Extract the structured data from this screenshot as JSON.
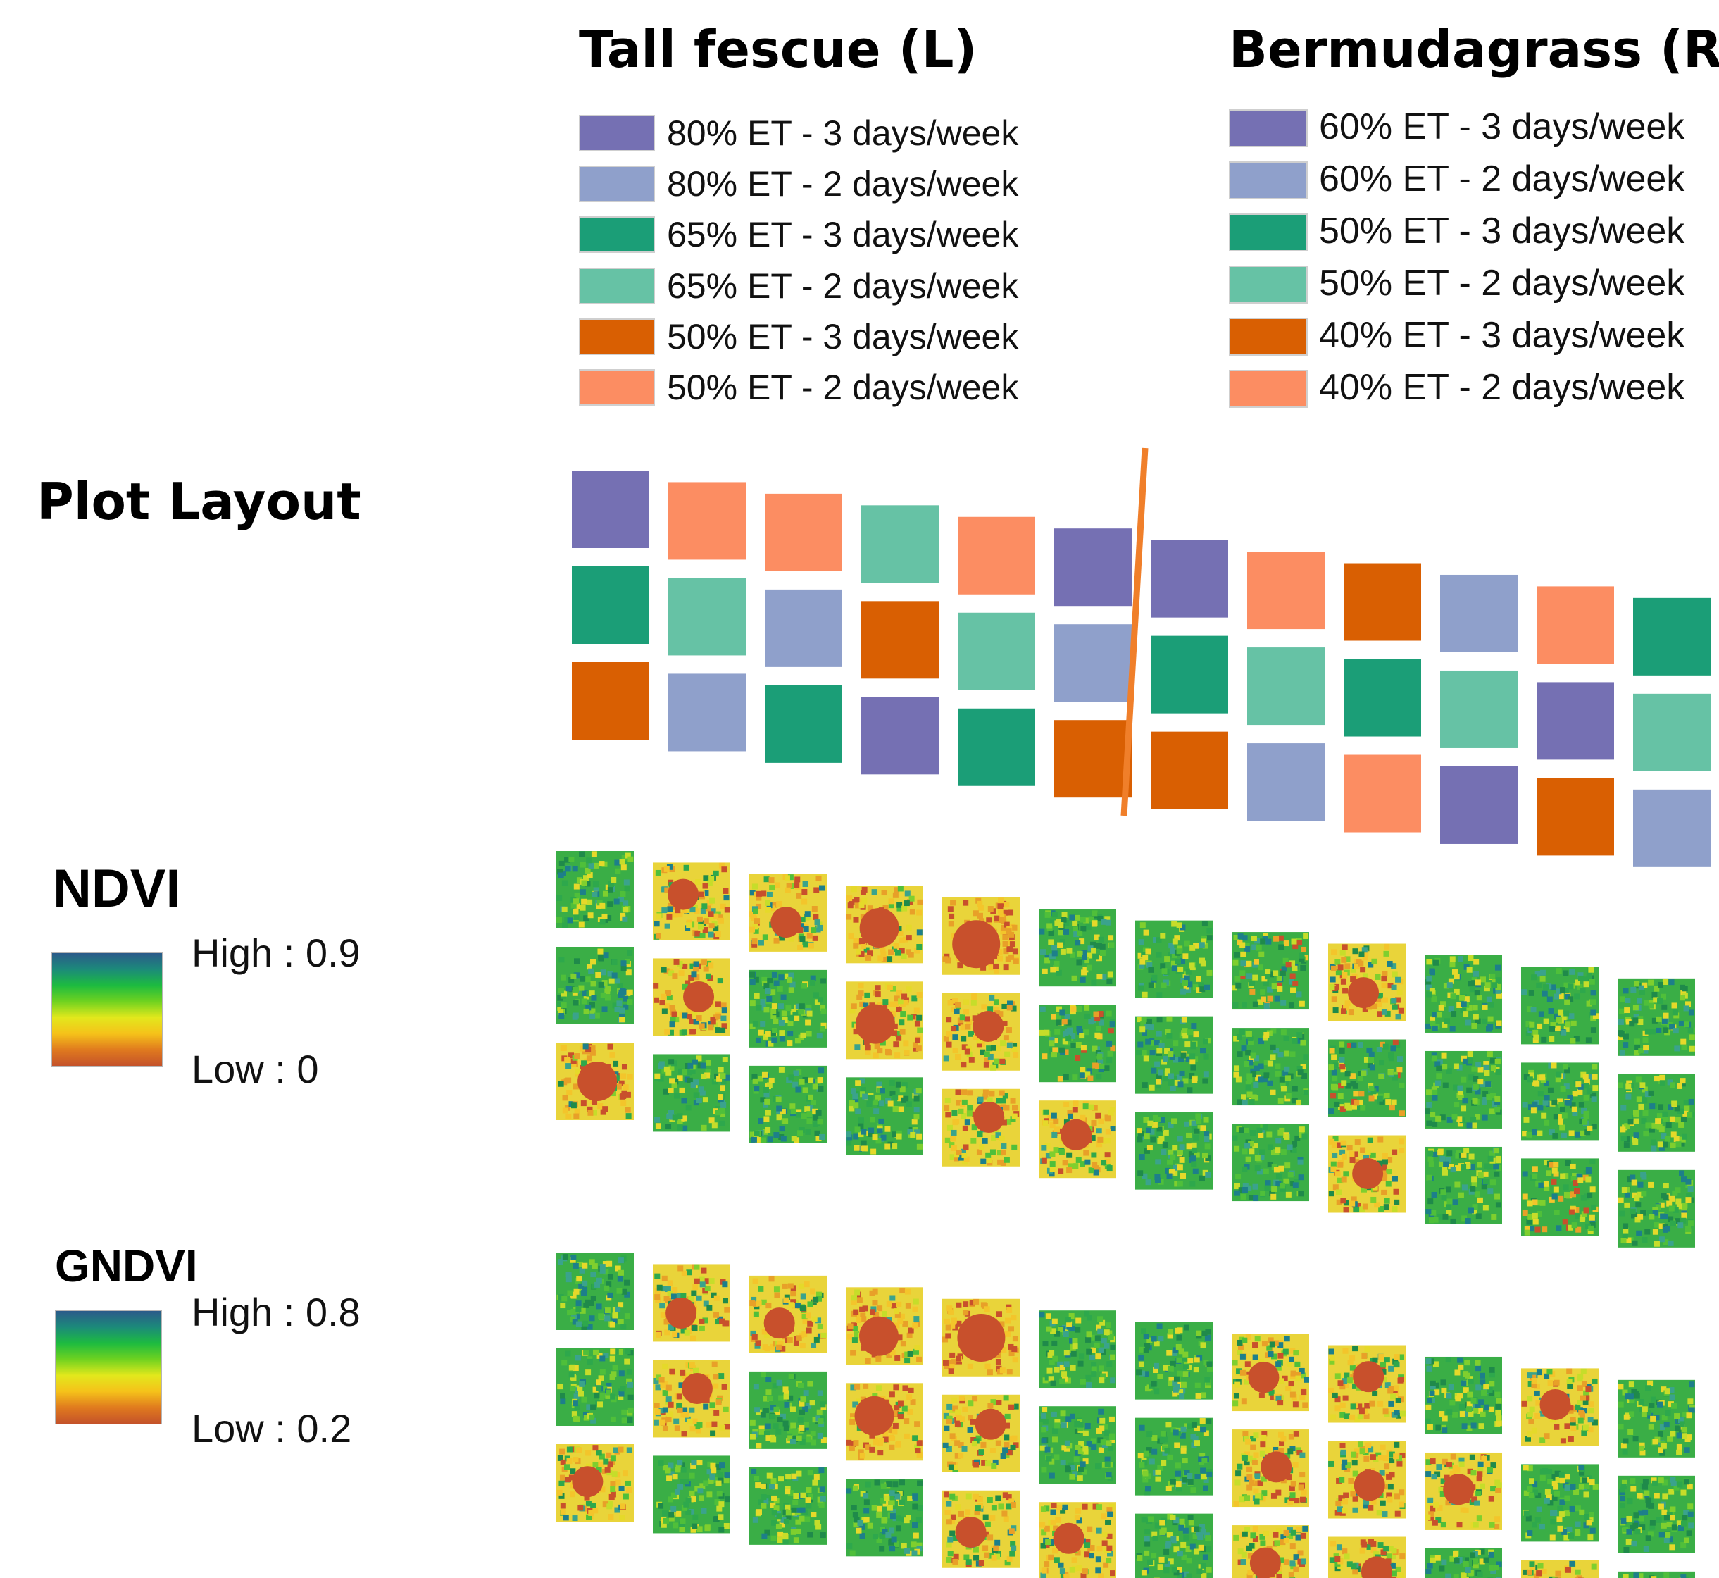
{
  "titles": {
    "tall_fescue": "Tall fescue (L)",
    "bermudagrass": "Bermudagrass (R)",
    "plot_layout": "Plot Layout",
    "ndvi": "NDVI",
    "gndvi": "GNDVI"
  },
  "colors": {
    "purple": "#7570b3",
    "lightblue": "#8fa0cb",
    "green": "#1b9e77",
    "lightgreen": "#66c2a5",
    "orange": "#d95f02",
    "salmon": "#fc8d62",
    "divider": "#f07f2a"
  },
  "legend_left": [
    {
      "label": "80% ET - 3 days/week",
      "color": "purple"
    },
    {
      "label": "80% ET - 2 days/week",
      "color": "lightblue"
    },
    {
      "label": "65% ET - 3 days/week",
      "color": "green"
    },
    {
      "label": "65% ET - 2 days/week",
      "color": "lightgreen"
    },
    {
      "label": "50% ET - 3 days/week",
      "color": "orange"
    },
    {
      "label": "50% ET - 2 days/week",
      "color": "salmon"
    }
  ],
  "legend_right": [
    {
      "label": "60% ET - 3 days/week",
      "color": "purple"
    },
    {
      "label": "60% ET - 2 days/week",
      "color": "lightblue"
    },
    {
      "label": "50% ET - 3 days/week",
      "color": "green"
    },
    {
      "label": "50% ET - 2 days/week",
      "color": "lightgreen"
    },
    {
      "label": "40% ET - 3 days/week",
      "color": "orange"
    },
    {
      "label": "40% ET - 2 days/week",
      "color": "salmon"
    }
  ],
  "plot_layout": [
    [
      "purple",
      "salmon",
      "salmon",
      "lightgreen",
      "salmon",
      "purple",
      "purple",
      "salmon",
      "orange",
      "lightblue",
      "salmon",
      "green"
    ],
    [
      "green",
      "lightgreen",
      "lightblue",
      "orange",
      "lightgreen",
      "lightblue",
      "green",
      "lightgreen",
      "green",
      "lightgreen",
      "purple",
      "lightgreen"
    ],
    [
      "orange",
      "lightblue",
      "green",
      "purple",
      "green",
      "orange",
      "orange",
      "lightblue",
      "salmon",
      "purple",
      "orange",
      "lightblue"
    ]
  ],
  "ndvi_scale": {
    "high": "High : 0.9",
    "low": "Low : 0"
  },
  "gndvi_scale": {
    "high": "High : 0.8",
    "low": "Low : 0.2"
  },
  "ramp": [
    "#2b5a8a",
    "#1c8a7a",
    "#1dbb40",
    "#6fd220",
    "#e2e81c",
    "#f5c21a",
    "#e07a1e",
    "#c4522a"
  ]
}
